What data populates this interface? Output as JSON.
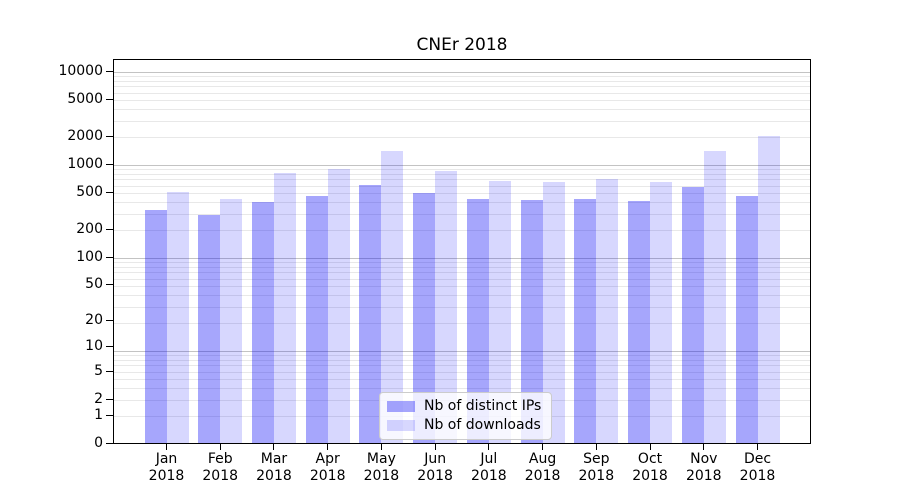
{
  "chart_data": {
    "type": "bar",
    "title": "CNEr 2018",
    "categories": [
      "Jan",
      "Feb",
      "Mar",
      "Apr",
      "May",
      "Jun",
      "Jul",
      "Aug",
      "Sep",
      "Oct",
      "Nov",
      "Dec"
    ],
    "year_label": "2018",
    "series": [
      {
        "name": "Nb of distinct IPs",
        "color": "#a7a7f7",
        "fill": "rgba(8,8,246,0.36)",
        "values": [
          320,
          280,
          390,
          450,
          595,
          490,
          420,
          410,
          420,
          400,
          565,
          450
        ]
      },
      {
        "name": "Nb of downloads",
        "color": "#d8d8fb",
        "fill": "rgba(8,8,246,0.16)",
        "values": [
          500,
          420,
          800,
          880,
          1380,
          840,
          660,
          640,
          690,
          640,
          1380,
          2000
        ]
      }
    ],
    "yticks": [
      0,
      1,
      2,
      5,
      10,
      20,
      50,
      100,
      200,
      500,
      1000,
      2000,
      5000,
      10000
    ],
    "yscale": "log1p",
    "ylim": [
      0,
      13000
    ],
    "grid": true,
    "grid_major_color": "#c3c3c3",
    "grid_minor_color": "#e8e8e8",
    "axis_color": "#000000",
    "legend_position": "bottom-center"
  }
}
